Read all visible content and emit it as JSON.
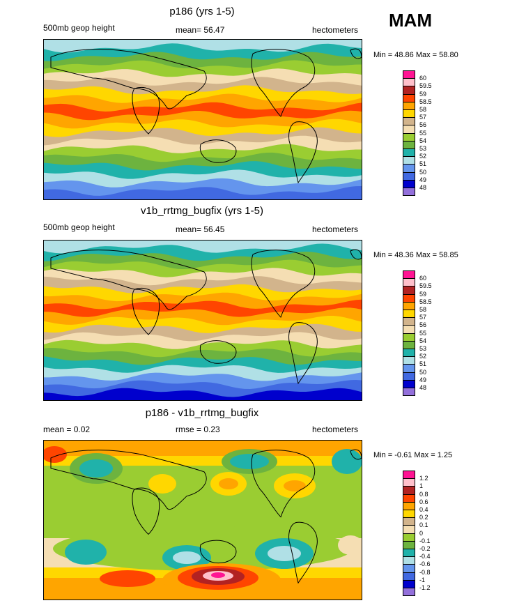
{
  "season": "MAM",
  "panels": [
    {
      "title": "p186 (yrs 1-5)",
      "left_label": "500mb geop height",
      "center_label": "mean=  56.47",
      "right_label": "hectometers",
      "minmax": "Min =  48.86 Max =  58.80",
      "legend": {
        "labels": [
          "60",
          "59.5",
          "59",
          "58.5",
          "58",
          "57",
          "56",
          "55",
          "54",
          "53",
          "52",
          "51",
          "50",
          "49",
          "48"
        ],
        "colors": [
          "#ff1493",
          "#ffc0cb",
          "#b22222",
          "#ff4500",
          "#ffa500",
          "#ffd700",
          "#d2b48c",
          "#f5deb3",
          "#9acd32",
          "#6db33f",
          "#20b2aa",
          "#b0e0e6",
          "#6495ed",
          "#4169e1",
          "#0000cd",
          "#9370db"
        ]
      }
    },
    {
      "title": "v1b_rrtmg_bugfix (yrs 1-5)",
      "left_label": "500mb geop height",
      "center_label": "mean=  56.45",
      "right_label": "hectometers",
      "minmax": "Min =  48.36 Max =  58.85",
      "legend": {
        "labels": [
          "60",
          "59.5",
          "59",
          "58.5",
          "58",
          "57",
          "56",
          "55",
          "54",
          "53",
          "52",
          "51",
          "50",
          "49",
          "48"
        ],
        "colors": [
          "#ff1493",
          "#ffc0cb",
          "#b22222",
          "#ff4500",
          "#ffa500",
          "#ffd700",
          "#d2b48c",
          "#f5deb3",
          "#9acd32",
          "#6db33f",
          "#20b2aa",
          "#b0e0e6",
          "#6495ed",
          "#4169e1",
          "#0000cd",
          "#9370db"
        ]
      }
    },
    {
      "title": "p186 - v1b_rrtmg_bugfix",
      "left_label": "mean =   0.02",
      "center_label": "rmse =   0.23",
      "right_label": "hectometers",
      "minmax": "Min =  -0.61 Max =   1.25",
      "legend": {
        "labels": [
          "1.2",
          "1",
          "0.8",
          "0.6",
          "0.4",
          "0.2",
          "0.1",
          "0",
          "-0.1",
          "-0.2",
          "-0.4",
          "-0.6",
          "-0.8",
          "-1",
          "-1.2"
        ],
        "colors": [
          "#ff1493",
          "#ffc0cb",
          "#b22222",
          "#ff4500",
          "#ffa500",
          "#ffd700",
          "#d2b48c",
          "#f5deb3",
          "#9acd32",
          "#6db33f",
          "#20b2aa",
          "#b0e0e6",
          "#6495ed",
          "#4169e1",
          "#0000cd",
          "#9370db"
        ]
      }
    }
  ],
  "chart_data": [
    {
      "type": "heatmap",
      "title": "p186 (yrs 1-5)",
      "variable": "500mb geop height",
      "units": "hectometers",
      "mean": 56.47,
      "min": 48.86,
      "max": 58.8,
      "contour_levels": [
        48,
        49,
        50,
        51,
        52,
        53,
        54,
        55,
        56,
        57,
        58,
        58.5,
        59,
        59.5,
        60
      ],
      "zonal_bands_top_to_bottom": [
        "#b0e0e6",
        "#20b2aa",
        "#6db33f",
        "#9acd32",
        "#f5deb3",
        "#d2b48c",
        "#ffd700",
        "#ffa500",
        "#ff4500",
        "#ffa500",
        "#ffd700",
        "#d2b48c",
        "#f5deb3",
        "#9acd32",
        "#6db33f",
        "#20b2aa",
        "#b0e0e6",
        "#6495ed",
        "#4169e1"
      ]
    },
    {
      "type": "heatmap",
      "title": "v1b_rrtmg_bugfix (yrs 1-5)",
      "variable": "500mb geop height",
      "units": "hectometers",
      "mean": 56.45,
      "min": 48.36,
      "max": 58.85,
      "contour_levels": [
        48,
        49,
        50,
        51,
        52,
        53,
        54,
        55,
        56,
        57,
        58,
        58.5,
        59,
        59.5,
        60
      ],
      "zonal_bands_top_to_bottom": [
        "#b0e0e6",
        "#20b2aa",
        "#6db33f",
        "#9acd32",
        "#f5deb3",
        "#d2b48c",
        "#ffd700",
        "#ffa500",
        "#ff4500",
        "#ffa500",
        "#ffd700",
        "#d2b48c",
        "#f5deb3",
        "#9acd32",
        "#6db33f",
        "#20b2aa",
        "#b0e0e6",
        "#6495ed",
        "#4169e1",
        "#0000cd"
      ]
    },
    {
      "type": "heatmap",
      "title": "p186 - v1b_rrtmg_bugfix",
      "units": "hectometers",
      "mean": 0.02,
      "rmse": 0.23,
      "min": -0.61,
      "max": 1.25,
      "contour_levels": [
        -1.2,
        -1,
        -0.8,
        -0.6,
        -0.4,
        -0.2,
        -0.1,
        0,
        0.1,
        0.2,
        0.4,
        0.6,
        0.8,
        1,
        1.2
      ]
    }
  ]
}
